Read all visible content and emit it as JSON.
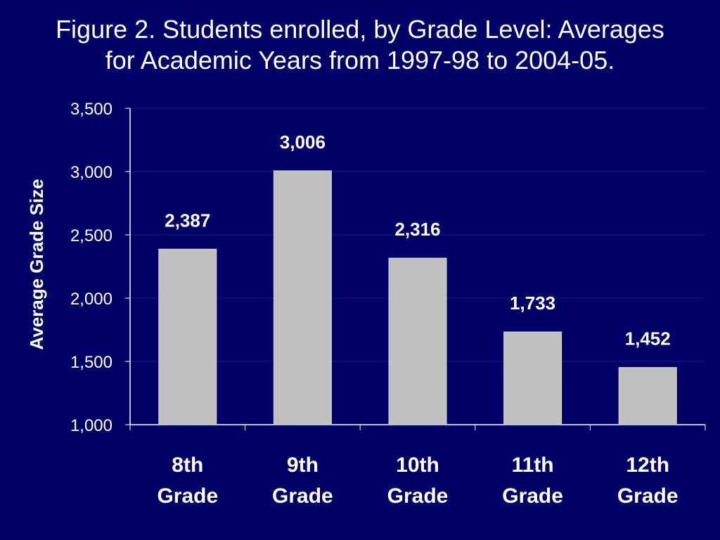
{
  "chart_data": {
    "type": "bar",
    "title_lines": [
      "Figure 2. Students enrolled, by Grade Level: Averages",
      "for Academic Years from 1997-98 to 2004-05."
    ],
    "ylabel": "Average Grade Size",
    "xlabel": "",
    "categories": [
      [
        "8th",
        "Grade"
      ],
      [
        "9th",
        "Grade"
      ],
      [
        "10th",
        "Grade"
      ],
      [
        "11th",
        "Grade"
      ],
      [
        "12th",
        "Grade"
      ]
    ],
    "values": [
      2387,
      3006,
      2316,
      1733,
      1452
    ],
    "value_labels": [
      "2,387",
      "3,006",
      "2,316",
      "1,733",
      "1,452"
    ],
    "ylim": [
      1000,
      3500
    ],
    "yticks": [
      1000,
      1500,
      2000,
      2500,
      3000,
      3500
    ],
    "ytick_labels": [
      "1,000",
      "1,500",
      "2,000",
      "2,500",
      "3,000",
      "3,500"
    ],
    "grid": true,
    "legend": "none",
    "colors": {
      "background": "#000066",
      "bar": "#c0c0c0",
      "text": "#ffffff",
      "grid": "#1a1a80",
      "axis": "#ffffff"
    }
  }
}
